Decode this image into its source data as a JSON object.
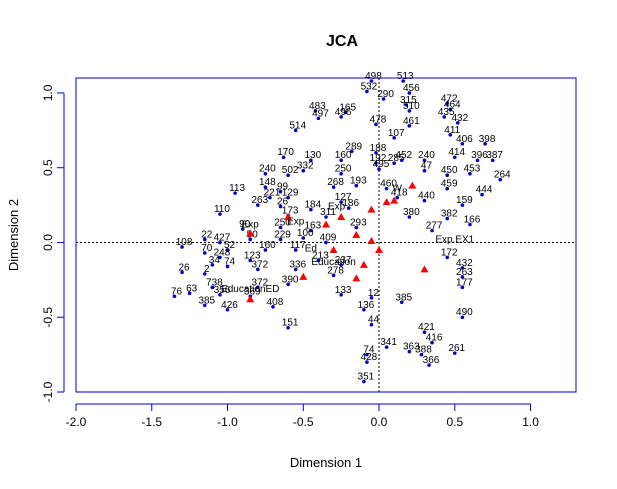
{
  "chart_data": {
    "type": "scatter",
    "title": "JCA",
    "xlabel": "Dimension 1",
    "ylabel": "Dimension 2",
    "xlim": [
      -2.0,
      1.3
    ],
    "ylim": [
      -1.0,
      1.1
    ],
    "xticks": [
      "-2.0",
      "-1.5",
      "-1.0",
      "-0.5",
      "0.0",
      "0.5",
      "1.0"
    ],
    "yticks": [
      "-1.0",
      "-0.5",
      "0.0",
      "0.5",
      "1.0"
    ],
    "reference_lines": {
      "x": 0,
      "y": 0,
      "style": "dotted"
    },
    "colors": {
      "rows": "#0000cc",
      "categories": "#ff0000",
      "axes": "#000000"
    },
    "series": [
      {
        "points": [
          {
            "x": -0.05,
            "y": 1.08,
            "label": "498"
          },
          {
            "x": 0.16,
            "y": 1.08,
            "label": "513"
          },
          {
            "x": -0.08,
            "y": 1.01,
            "label": "532"
          },
          {
            "x": 0.2,
            "y": 1.0,
            "label": "456"
          },
          {
            "x": 0.03,
            "y": 0.96,
            "label": "290"
          },
          {
            "x": 0.18,
            "y": 0.92,
            "label": "315"
          },
          {
            "x": -0.42,
            "y": 0.88,
            "label": "483"
          },
          {
            "x": -0.22,
            "y": 0.87,
            "label": "165"
          },
          {
            "x": 0.45,
            "y": 0.93,
            "label": "472"
          },
          {
            "x": 0.47,
            "y": 0.89,
            "label": "464"
          },
          {
            "x": 0.2,
            "y": 0.88,
            "label": "510"
          },
          {
            "x": -0.4,
            "y": 0.83,
            "label": "497"
          },
          {
            "x": -0.25,
            "y": 0.84,
            "label": "496"
          },
          {
            "x": 0.43,
            "y": 0.84,
            "label": "435"
          },
          {
            "x": 0.52,
            "y": 0.8,
            "label": "432"
          },
          {
            "x": -0.55,
            "y": 0.75,
            "label": "514"
          },
          {
            "x": 0.2,
            "y": 0.78,
            "label": "461"
          },
          {
            "x": -0.02,
            "y": 0.79,
            "label": "478"
          },
          {
            "x": 0.1,
            "y": 0.7,
            "label": "107"
          },
          {
            "x": 0.47,
            "y": 0.72,
            "label": "411"
          },
          {
            "x": 0.55,
            "y": 0.66,
            "label": "406"
          },
          {
            "x": 0.7,
            "y": 0.66,
            "label": "398"
          },
          {
            "x": -0.18,
            "y": 0.61,
            "label": "289"
          },
          {
            "x": -0.02,
            "y": 0.6,
            "label": "188"
          },
          {
            "x": -0.63,
            "y": 0.57,
            "label": "170"
          },
          {
            "x": -0.45,
            "y": 0.55,
            "label": "130"
          },
          {
            "x": -0.25,
            "y": 0.55,
            "label": "160"
          },
          {
            "x": -0.02,
            "y": 0.53,
            "label": "192"
          },
          {
            "x": 0.1,
            "y": 0.53,
            "label": "285"
          },
          {
            "x": 0.15,
            "y": 0.55,
            "label": "452"
          },
          {
            "x": 0.3,
            "y": 0.55,
            "label": "240"
          },
          {
            "x": 0.5,
            "y": 0.57,
            "label": "414"
          },
          {
            "x": 0.65,
            "y": 0.55,
            "label": "396"
          },
          {
            "x": 0.75,
            "y": 0.55,
            "label": "387"
          },
          {
            "x": -0.75,
            "y": 0.46,
            "label": "240"
          },
          {
            "x": -0.6,
            "y": 0.45,
            "label": "502"
          },
          {
            "x": -0.5,
            "y": 0.48,
            "label": "332"
          },
          {
            "x": -0.25,
            "y": 0.46,
            "label": "250"
          },
          {
            "x": 0.0,
            "y": 0.49,
            "label": "495"
          },
          {
            "x": 0.3,
            "y": 0.48,
            "label": "47"
          },
          {
            "x": 0.45,
            "y": 0.45,
            "label": "450"
          },
          {
            "x": 0.6,
            "y": 0.46,
            "label": "453"
          },
          {
            "x": 0.8,
            "y": 0.42,
            "label": "264"
          },
          {
            "x": -0.75,
            "y": 0.37,
            "label": "148"
          },
          {
            "x": -0.65,
            "y": 0.34,
            "label": "99"
          },
          {
            "x": -0.3,
            "y": 0.37,
            "label": "268"
          },
          {
            "x": -0.15,
            "y": 0.38,
            "label": "193"
          },
          {
            "x": 0.05,
            "y": 0.36,
            "label": "460"
          },
          {
            "x": 0.45,
            "y": 0.36,
            "label": "459"
          },
          {
            "x": 0.68,
            "y": 0.32,
            "label": "444"
          },
          {
            "x": -0.95,
            "y": 0.33,
            "label": "113"
          },
          {
            "x": -0.72,
            "y": 0.3,
            "label": "221"
          },
          {
            "x": -0.6,
            "y": 0.3,
            "label": "129"
          },
          {
            "x": -0.25,
            "y": 0.27,
            "label": "127"
          },
          {
            "x": 0.12,
            "y": 0.3,
            "label": "418"
          },
          {
            "x": 0.3,
            "y": 0.28,
            "label": "440"
          },
          {
            "x": -0.8,
            "y": 0.25,
            "label": "263"
          },
          {
            "x": -0.65,
            "y": 0.24,
            "label": "26"
          },
          {
            "x": -0.45,
            "y": 0.22,
            "label": "184"
          },
          {
            "x": -0.2,
            "y": 0.23,
            "label": "186"
          },
          {
            "x": 0.55,
            "y": 0.25,
            "label": "159"
          },
          {
            "x": -1.05,
            "y": 0.19,
            "label": "110"
          },
          {
            "x": -0.6,
            "y": 0.18,
            "label": "173"
          },
          {
            "x": -0.35,
            "y": 0.17,
            "label": "311"
          },
          {
            "x": 0.2,
            "y": 0.17,
            "label": "380"
          },
          {
            "x": 0.45,
            "y": 0.16,
            "label": "382"
          },
          {
            "x": 0.6,
            "y": 0.12,
            "label": "166"
          },
          {
            "x": -0.9,
            "y": 0.09,
            "label": "90"
          },
          {
            "x": -0.65,
            "y": 0.1,
            "label": "250"
          },
          {
            "x": -0.45,
            "y": 0.08,
            "label": "163"
          },
          {
            "x": -0.15,
            "y": 0.1,
            "label": "293"
          },
          {
            "x": 0.35,
            "y": 0.08,
            "label": "277"
          },
          {
            "x": -1.15,
            "y": 0.02,
            "label": "22"
          },
          {
            "x": -1.05,
            "y": 0.0,
            "label": "427"
          },
          {
            "x": -0.85,
            "y": 0.02,
            "label": "50"
          },
          {
            "x": -0.65,
            "y": 0.02,
            "label": "229"
          },
          {
            "x": -0.5,
            "y": 0.03,
            "label": "100"
          },
          {
            "x": -0.35,
            "y": 0.0,
            "label": "409"
          },
          {
            "x": -1.3,
            "y": -0.03,
            "label": "108"
          },
          {
            "x": -1.15,
            "y": -0.07,
            "label": "70"
          },
          {
            "x": -1.0,
            "y": -0.05,
            "label": "52"
          },
          {
            "x": -0.75,
            "y": -0.05,
            "label": "160"
          },
          {
            "x": -0.55,
            "y": -0.05,
            "label": "117"
          },
          {
            "x": -1.05,
            "y": -0.1,
            "label": "248"
          },
          {
            "x": -0.85,
            "y": -0.12,
            "label": "123"
          },
          {
            "x": -0.4,
            "y": -0.12,
            "label": "213"
          },
          {
            "x": 0.45,
            "y": -0.1,
            "label": "172"
          },
          {
            "x": -1.1,
            "y": -0.15,
            "label": "34"
          },
          {
            "x": -1.0,
            "y": -0.16,
            "label": "74"
          },
          {
            "x": -0.25,
            "y": -0.15,
            "label": "237"
          },
          {
            "x": 0.55,
            "y": -0.17,
            "label": "432"
          },
          {
            "x": -1.3,
            "y": -0.2,
            "label": "26"
          },
          {
            "x": -1.15,
            "y": -0.21,
            "label": "2"
          },
          {
            "x": -0.8,
            "y": -0.18,
            "label": "372"
          },
          {
            "x": -0.55,
            "y": -0.18,
            "label": "336"
          },
          {
            "x": -0.3,
            "y": -0.22,
            "label": "278"
          },
          {
            "x": 0.55,
            "y": -0.23,
            "label": "263"
          },
          {
            "x": -1.1,
            "y": -0.3,
            "label": "738"
          },
          {
            "x": -0.8,
            "y": -0.3,
            "label": "372"
          },
          {
            "x": -0.6,
            "y": -0.28,
            "label": "390"
          },
          {
            "x": 0.55,
            "y": -0.3,
            "label": "177"
          },
          {
            "x": -1.35,
            "y": -0.36,
            "label": "76"
          },
          {
            "x": -1.25,
            "y": -0.34,
            "label": "63"
          },
          {
            "x": -1.05,
            "y": -0.35,
            "label": "356"
          },
          {
            "x": -0.85,
            "y": -0.36,
            "label": "369"
          },
          {
            "x": -0.25,
            "y": -0.35,
            "label": "133"
          },
          {
            "x": -0.05,
            "y": -0.37,
            "label": "12"
          },
          {
            "x": 0.15,
            "y": -0.4,
            "label": "385"
          },
          {
            "x": -1.15,
            "y": -0.42,
            "label": "385"
          },
          {
            "x": -1.0,
            "y": -0.45,
            "label": "426"
          },
          {
            "x": -0.7,
            "y": -0.43,
            "label": "408"
          },
          {
            "x": -0.1,
            "y": -0.45,
            "label": "136"
          },
          {
            "x": 0.55,
            "y": -0.5,
            "label": "490"
          },
          {
            "x": -0.6,
            "y": -0.57,
            "label": "151"
          },
          {
            "x": -0.05,
            "y": -0.55,
            "label": "44"
          },
          {
            "x": 0.3,
            "y": -0.6,
            "label": "421"
          },
          {
            "x": 0.05,
            "y": -0.7,
            "label": "341"
          },
          {
            "x": 0.2,
            "y": -0.73,
            "label": "363"
          },
          {
            "x": 0.35,
            "y": -0.67,
            "label": "416"
          },
          {
            "x": 0.5,
            "y": -0.74,
            "label": "261"
          },
          {
            "x": -0.08,
            "y": -0.75,
            "label": "74"
          },
          {
            "x": 0.28,
            "y": -0.75,
            "label": "388"
          },
          {
            "x": -0.08,
            "y": -0.8,
            "label": "428"
          },
          {
            "x": 0.33,
            "y": -0.82,
            "label": "366"
          },
          {
            "x": -0.1,
            "y": -0.93,
            "label": "351"
          }
        ]
      },
      {
        "points": [
          {
            "x": -0.85,
            "y": 0.06
          },
          {
            "x": -0.6,
            "y": 0.17
          },
          {
            "x": -0.35,
            "y": 0.12
          },
          {
            "x": -0.25,
            "y": 0.17
          },
          {
            "x": -0.05,
            "y": 0.22
          },
          {
            "x": 0.05,
            "y": 0.27
          },
          {
            "x": 0.1,
            "y": 0.28
          },
          {
            "x": 0.22,
            "y": 0.38
          },
          {
            "x": -0.15,
            "y": 0.05
          },
          {
            "x": -0.05,
            "y": 0.01
          },
          {
            "x": 0.0,
            "y": -0.05
          },
          {
            "x": -0.3,
            "y": -0.05
          },
          {
            "x": -0.1,
            "y": -0.15
          },
          {
            "x": 0.3,
            "y": -0.18
          },
          {
            "x": -0.5,
            "y": -0.23
          },
          {
            "x": -0.15,
            "y": -0.24
          },
          {
            "x": -0.85,
            "y": -0.38
          }
        ],
        "labels": [
          {
            "x": -0.85,
            "y": 0.1,
            "text": "Exp"
          },
          {
            "x": -0.55,
            "y": 0.12,
            "text": "Exp"
          },
          {
            "x": -0.28,
            "y": 0.22,
            "text": "Exp"
          },
          {
            "x": 0.12,
            "y": 0.34,
            "text": "W"
          },
          {
            "x": -0.45,
            "y": -0.06,
            "text": "Ed"
          },
          {
            "x": -0.3,
            "y": -0.15,
            "text": "Education"
          },
          {
            "x": 0.5,
            "y": 0.0,
            "text": "Exp.EX1"
          },
          {
            "x": -0.85,
            "y": -0.33,
            "text": "EducationED"
          }
        ]
      }
    ]
  }
}
